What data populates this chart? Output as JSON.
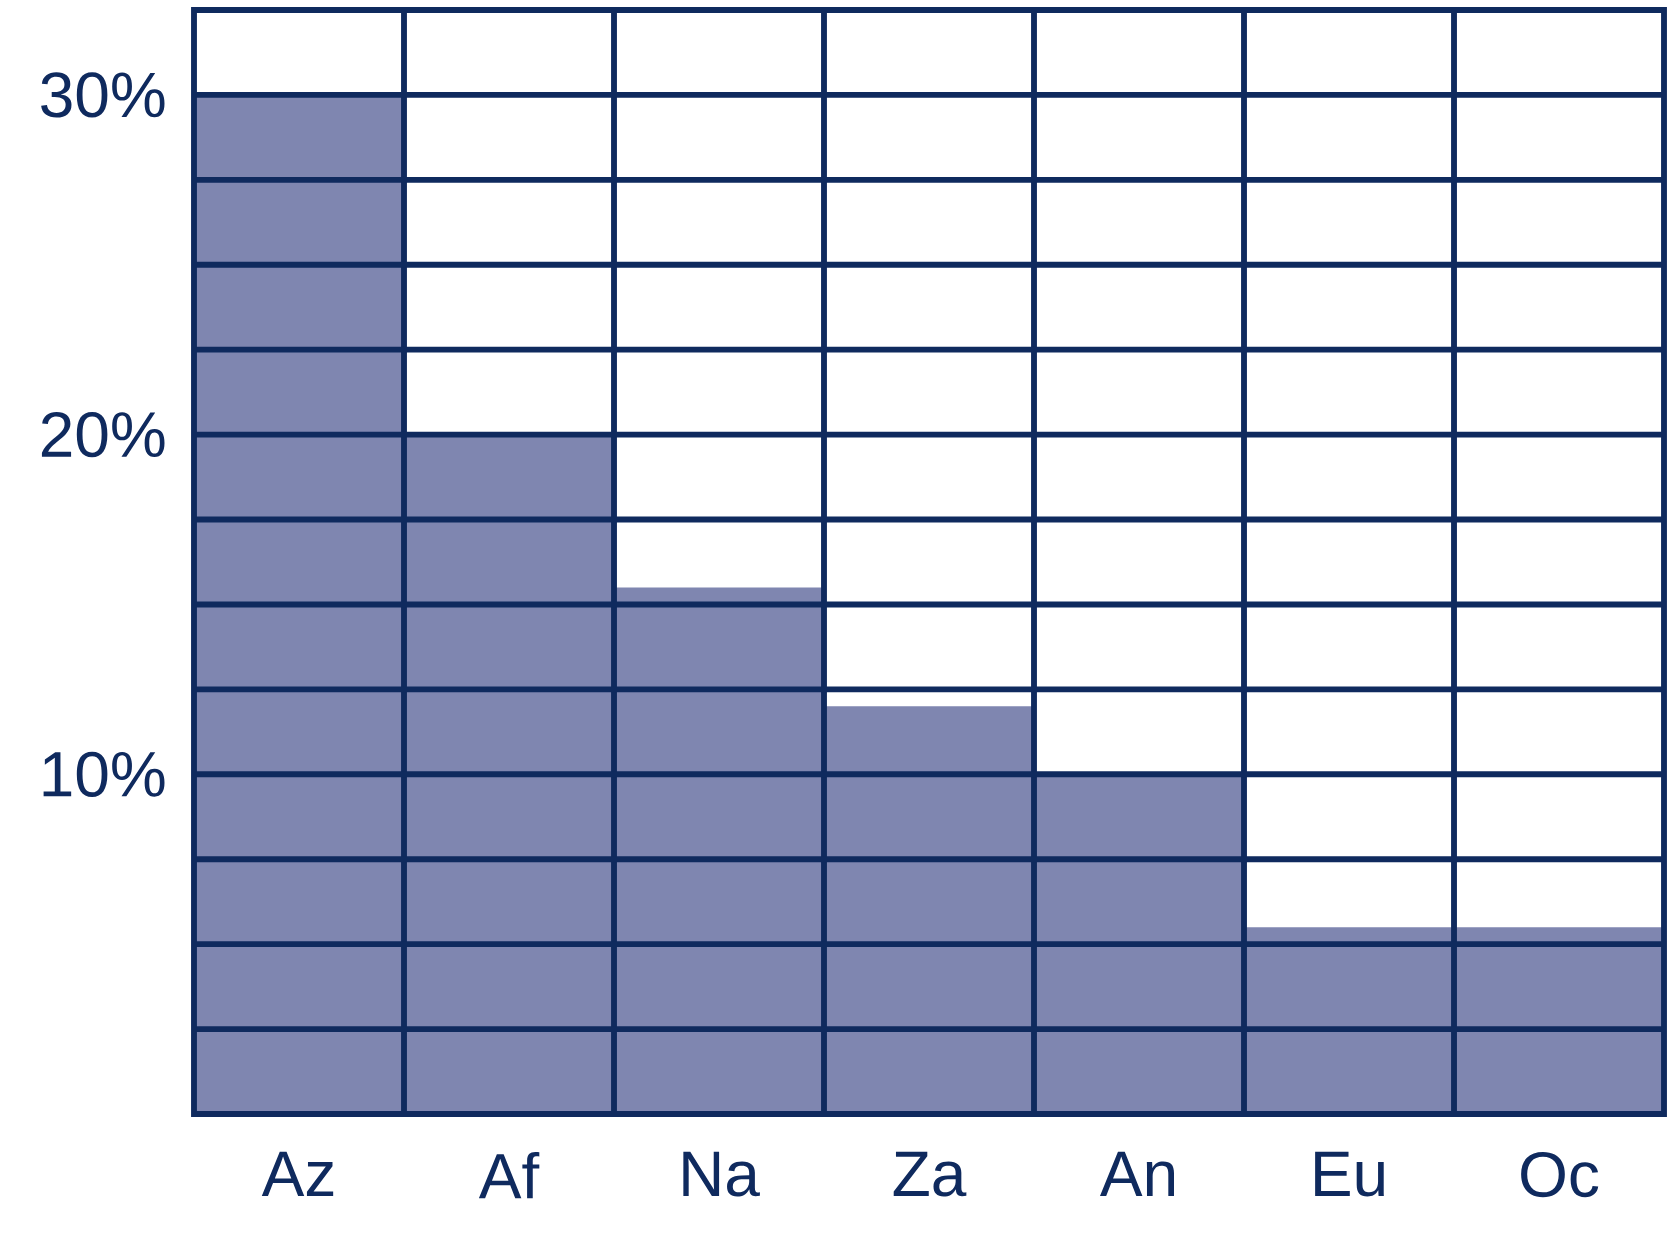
{
  "chart_data": {
    "type": "bar",
    "categories": [
      "Az",
      "Af",
      "Na",
      "Za",
      "An",
      "Eu",
      "Oc"
    ],
    "values": [
      30,
      20,
      15.5,
      12,
      10,
      5.5,
      5.5
    ],
    "color": "#7f86b0",
    "grid": true,
    "ylim": [
      0,
      32.5
    ],
    "yticks": [
      {
        "value": 0,
        "label": null
      },
      {
        "value": 2.5,
        "label": null
      },
      {
        "value": 5,
        "label": null
      },
      {
        "value": 7.5,
        "label": null
      },
      {
        "value": 10,
        "label": "10%"
      },
      {
        "value": 12.5,
        "label": null
      },
      {
        "value": 15,
        "label": null
      },
      {
        "value": 17.5,
        "label": null
      },
      {
        "value": 20,
        "label": "20%"
      },
      {
        "value": 22.5,
        "label": null
      },
      {
        "value": 25,
        "label": null
      },
      {
        "value": 27.5,
        "label": null
      },
      {
        "value": 30,
        "label": "30%"
      },
      {
        "value": 32.5,
        "label": null
      }
    ]
  }
}
